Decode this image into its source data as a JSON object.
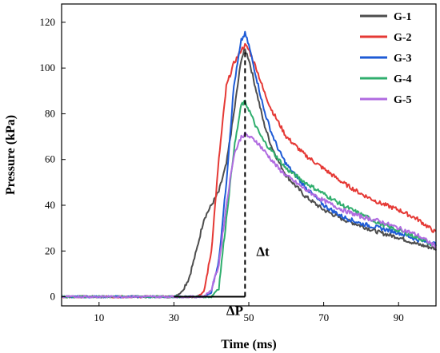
{
  "chart_data": {
    "type": "line",
    "xlabel": "Time (ms)",
    "ylabel": "Pressure (kPa)",
    "xlim": [
      0,
      100
    ],
    "ylim": [
      -4,
      128
    ],
    "xticks": [
      10,
      30,
      50,
      70,
      90
    ],
    "yticks": [
      0,
      20,
      40,
      60,
      80,
      100,
      120
    ],
    "grid": false,
    "legend_position": "top-right",
    "series": [
      {
        "name": "G-1",
        "color": "#4d4d4d",
        "x": [
          0,
          30,
          32,
          34,
          36,
          38,
          40,
          42,
          44,
          46,
          48,
          49,
          50,
          52,
          54,
          56,
          58,
          60,
          65,
          70,
          75,
          80,
          85,
          90,
          95,
          100
        ],
        "y": [
          0,
          0,
          2,
          8,
          20,
          34,
          40,
          46,
          58,
          80,
          104,
          108,
          104,
          90,
          76,
          66,
          59,
          53,
          44,
          38,
          34,
          31,
          28,
          26,
          23,
          21
        ]
      },
      {
        "name": "G-2",
        "color": "#e53935",
        "x": [
          0,
          36,
          38,
          40,
          42,
          44,
          46,
          48,
          49,
          50,
          52,
          54,
          56,
          58,
          60,
          65,
          70,
          75,
          80,
          85,
          90,
          95,
          100
        ],
        "y": [
          0,
          0,
          2,
          20,
          60,
          92,
          102,
          108,
          110,
          108,
          100,
          90,
          82,
          76,
          70,
          62,
          56,
          50,
          45,
          41,
          38,
          34,
          28
        ]
      },
      {
        "name": "G-3",
        "color": "#1e5bd6",
        "x": [
          0,
          38,
          40,
          42,
          44,
          46,
          48,
          49,
          50,
          52,
          54,
          56,
          58,
          60,
          65,
          70,
          75,
          80,
          85,
          90,
          95,
          100
        ],
        "y": [
          0,
          0,
          2,
          16,
          50,
          92,
          112,
          115,
          110,
          96,
          82,
          72,
          64,
          58,
          48,
          40,
          35,
          32,
          30,
          28,
          25,
          23
        ]
      },
      {
        "name": "G-4",
        "color": "#2fae6d",
        "x": [
          0,
          40,
          42,
          44,
          46,
          48,
          49,
          50,
          52,
          54,
          56,
          58,
          60,
          65,
          70,
          75,
          80,
          85,
          90,
          95,
          100
        ],
        "y": [
          0,
          0,
          4,
          34,
          64,
          84,
          85,
          82,
          74,
          68,
          64,
          60,
          56,
          50,
          45,
          40,
          36,
          32,
          29,
          26,
          22
        ]
      },
      {
        "name": "G-5",
        "color": "#b06be0",
        "x": [
          0,
          38,
          40,
          42,
          44,
          46,
          48,
          49,
          50,
          52,
          54,
          56,
          58,
          60,
          65,
          70,
          75,
          80,
          85,
          90,
          95,
          100
        ],
        "y": [
          0,
          0,
          3,
          14,
          40,
          62,
          70,
          71,
          70,
          68,
          64,
          60,
          56,
          53,
          47,
          42,
          38,
          35,
          33,
          30,
          27,
          22
        ]
      }
    ],
    "annotations": [
      {
        "text": "ΔP",
        "x": 44,
        "y": -6
      },
      {
        "text": "Δt",
        "x": 52,
        "y": 20
      }
    ],
    "annotation_lines": {
      "vertical_dashed_x": 49,
      "vertical_dashed_y": [
        0,
        108
      ],
      "baseline_x": [
        30,
        49
      ],
      "baseline_y": 0
    }
  }
}
